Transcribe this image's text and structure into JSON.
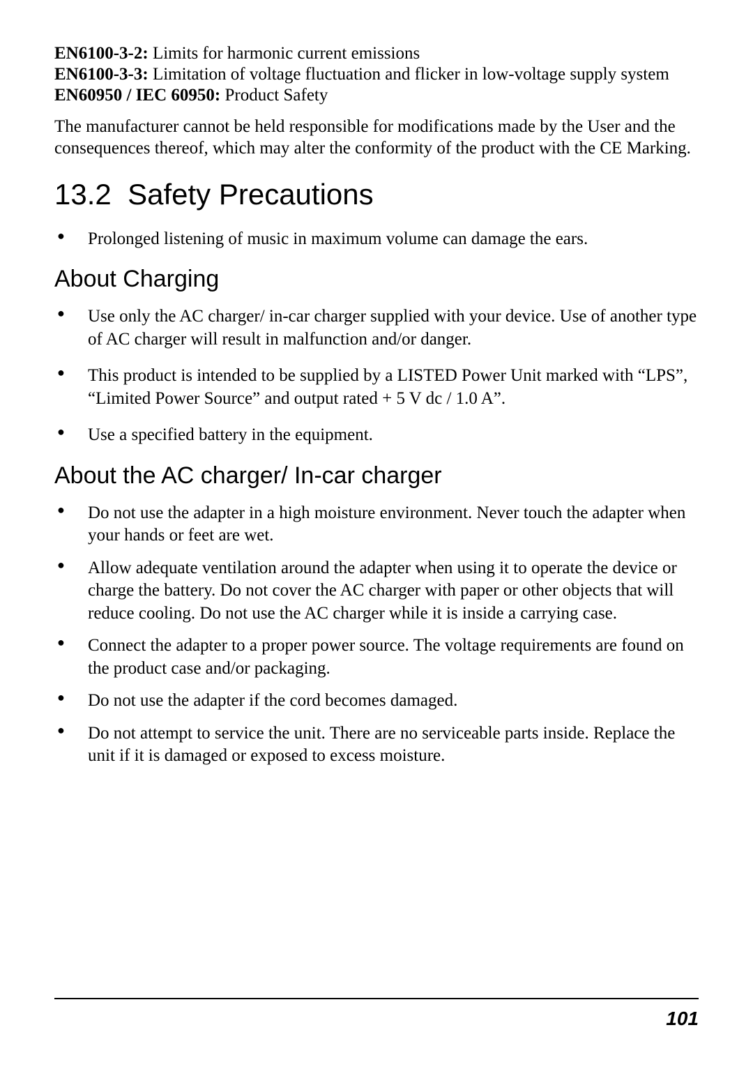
{
  "standards": [
    {
      "code": "EN6100-3-2:",
      "text": " Limits for harmonic current emissions"
    },
    {
      "code": "EN6100-3-3:",
      "text": " Limitation of voltage fluctuation and flicker in low-voltage supply system"
    },
    {
      "code": "EN60950 / IEC 60950:",
      "text": " Product Safety"
    }
  ],
  "disclaimer": "The manufacturer cannot be held responsible for modifications made by the User and the consequences thereof, which may alter the conformity of the product with the CE Marking.",
  "section": {
    "number": "13.2",
    "title": "Safety Precautions"
  },
  "top_bullets": [
    "Prolonged listening of music in maximum volume can damage the ears."
  ],
  "charging": {
    "heading": "About Charging",
    "bullets": [
      "Use only the AC charger/ in-car charger supplied with your device. Use of another type of AC charger will result in malfunction and/or danger.",
      "This product is intended to be supplied by a LISTED Power Unit marked with “LPS”, “Limited Power Source” and output rated + 5 V dc / 1.0 A”.",
      "Use a specified battery in the equipment."
    ]
  },
  "adapter": {
    "heading": "About the AC charger/ In-car charger",
    "bullets": [
      "Do not use the adapter in a high moisture environment. Never touch the adapter when your hands or feet are wet.",
      "Allow adequate ventilation around the adapter when using it to operate the device or charge the battery. Do not cover the AC charger with paper or other objects that will reduce cooling. Do not use the AC charger while it is inside a carrying case.",
      "Connect the adapter to a proper power source. The voltage requirements are found on the product case and/or packaging.",
      "Do not use the adapter if the cord becomes damaged.",
      "Do not attempt to service the unit. There are no serviceable parts inside. Replace the unit if it is damaged or exposed to excess moisture."
    ]
  },
  "page_number": "101"
}
